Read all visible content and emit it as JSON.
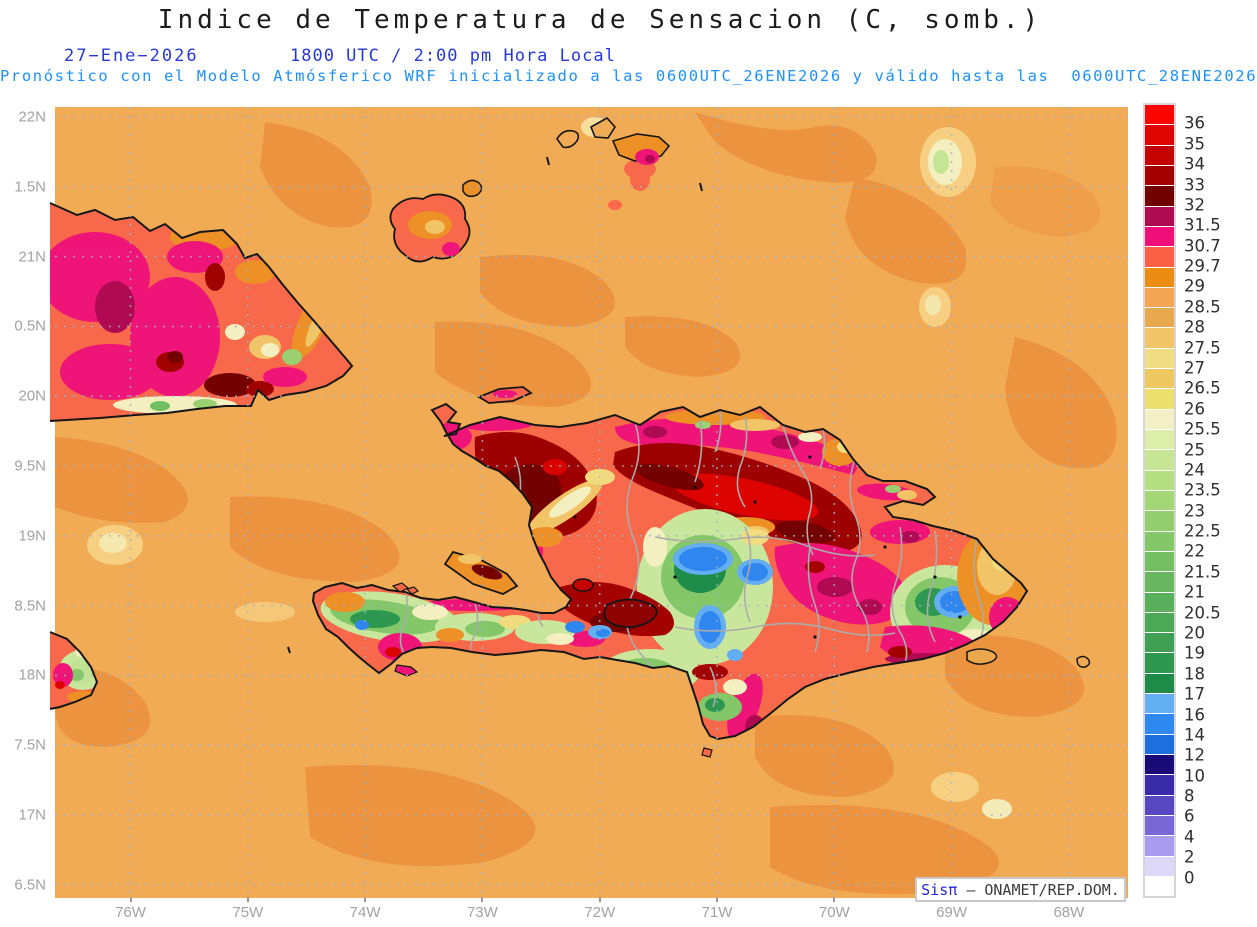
{
  "header": {
    "title": "Indice de Temperatura de Sensacion (C, somb.)",
    "date": "27−Ene−2026",
    "time": "1800 UTC / 2:00 pm Hora Local",
    "subtitle": "Pronóstico con el Modelo Atmósferico WRF inicializado a las 0600UTC_26ENE2026 y válido hasta las  0600UTC_28ENE2026"
  },
  "axes": {
    "lat_labels": [
      "22N",
      "1.5N",
      "21N",
      "0.5N",
      "20N",
      "9.5N",
      "19N",
      "8.5N",
      "18N",
      "7.5N",
      "17N",
      "6.5N"
    ],
    "lon_labels": [
      "76W",
      "75W",
      "74W",
      "73W",
      "72W",
      "71W",
      "70W",
      "69W",
      "68W"
    ]
  },
  "colorbar": {
    "unit": "C",
    "labels": [
      "36",
      "35",
      "34",
      "33",
      "32",
      "31.5",
      "30.7",
      "29.7",
      "29",
      "28.5",
      "28",
      "27.5",
      "27",
      "26.5",
      "26",
      "25.5",
      "25",
      "24",
      "23.5",
      "23",
      "22.5",
      "22",
      "21.5",
      "21",
      "20.5",
      "20",
      "19",
      "18",
      "17",
      "16",
      "14",
      "12",
      "10",
      "8",
      "6",
      "4",
      "2",
      "0"
    ],
    "colors": [
      "#FB0300",
      "#E00400",
      "#C40301",
      "#A40200",
      "#700100",
      "#AE0B50",
      "#F00E79",
      "#FA6147",
      "#EB8D13",
      "#F3A455",
      "#E8A94E",
      "#F2C468",
      "#F0DC82",
      "#EDC75F",
      "#EDE06E",
      "#F2F0C4",
      "#DDEEA9",
      "#C6E695",
      "#B5DF83",
      "#A3D674",
      "#92CE6D",
      "#84C768",
      "#75BF63",
      "#68B75F",
      "#59AF5B",
      "#4CA757",
      "#3FA053",
      "#2E9850",
      "#1E8C48",
      "#64AEF2",
      "#2F88EF",
      "#1D6FDD",
      "#190A75",
      "#3A2BA8",
      "#5847C0",
      "#7867D4",
      "#A99CEF",
      "#DDD8F7",
      "#FFFFFF"
    ]
  },
  "watermark": {
    "brand": "Sisπ ",
    "suffix": "– ONAMET/REP.DOM."
  },
  "palette": {
    "title_text": "#1c1c1c",
    "date_text": "#2638d8",
    "subtitle_text": "#1e90ff",
    "axis_text": "#a2a2a2",
    "ocean_light": "#F2AB55",
    "ocean_dark": "#EC9340",
    "coastline": "#161616",
    "admin_boundary": "#ABABAB",
    "gridline": "#9FB0C8",
    "hot_magenta": "#EE1478",
    "hot_dark_red": "#9E0200",
    "cool_green": "#4CA757",
    "cool_blue": "#2E86EE"
  }
}
